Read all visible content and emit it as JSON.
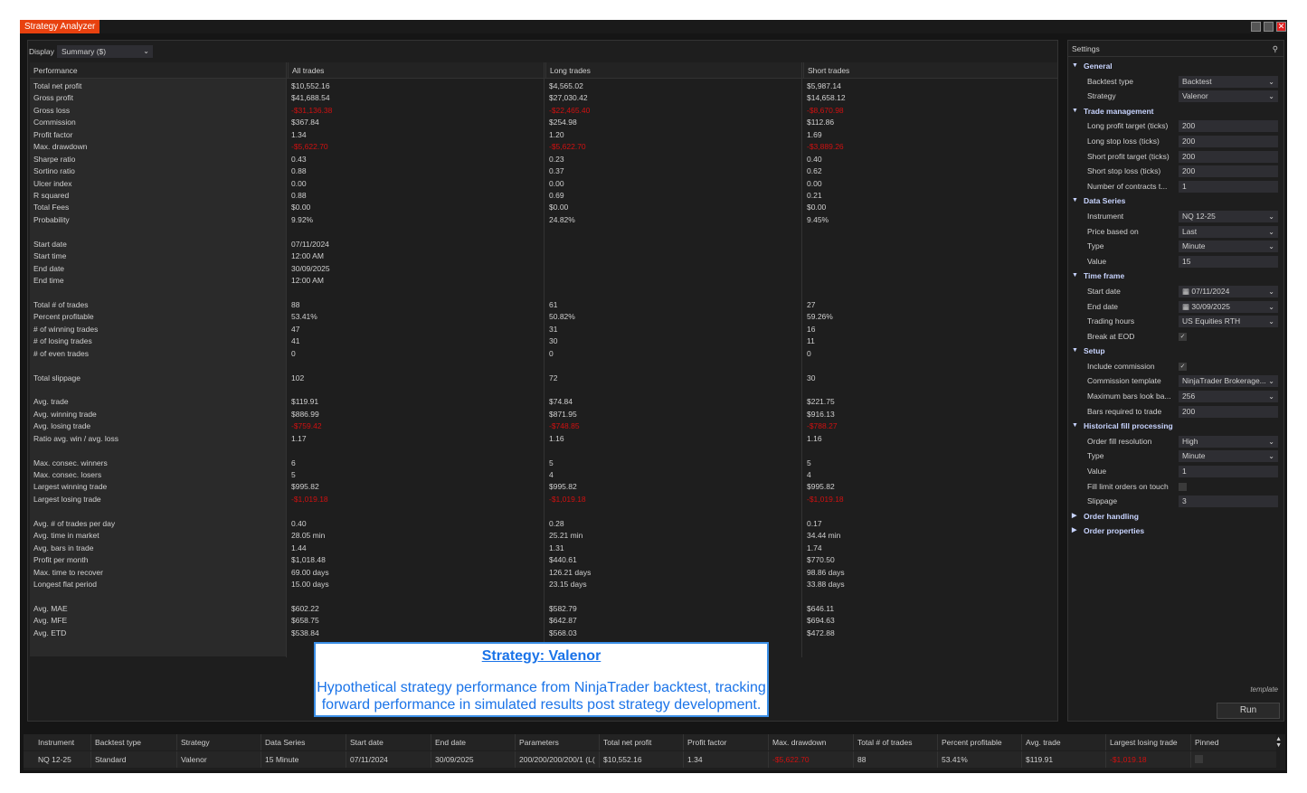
{
  "window": {
    "title": "Strategy Analyzer"
  },
  "display": {
    "label": "Display",
    "value": "Summary ($)"
  },
  "performance": {
    "headers": [
      "Performance",
      "All trades",
      "Long trades",
      "Short trades"
    ],
    "rows": [
      [
        "Total net profit",
        "$10,552.16",
        "$4,565.02",
        "$5,987.14"
      ],
      [
        "Gross profit",
        "$41,688.54",
        "$27,030.42",
        "$14,658.12"
      ],
      [
        "Gross loss",
        "-$31,136.38",
        "-$22,465.40",
        "-$8,670.98"
      ],
      [
        "Commission",
        "$367.84",
        "$254.98",
        "$112.86"
      ],
      [
        "Profit factor",
        "1.34",
        "1.20",
        "1.69"
      ],
      [
        "Max. drawdown",
        "-$5,622.70",
        "-$5,622.70",
        "-$3,889.26"
      ],
      [
        "Sharpe ratio",
        "0.43",
        "0.23",
        "0.40"
      ],
      [
        "Sortino ratio",
        "0.88",
        "0.37",
        "0.62"
      ],
      [
        "Ulcer index",
        "0.00",
        "0.00",
        "0.00"
      ],
      [
        "R squared",
        "0.88",
        "0.69",
        "0.21"
      ],
      [
        "Total Fees",
        "$0.00",
        "$0.00",
        "$0.00"
      ],
      [
        "Probability",
        "9.92%",
        "24.82%",
        "9.45%"
      ],
      [
        "",
        "",
        "",
        ""
      ],
      [
        "Start date",
        "07/11/2024",
        "",
        ""
      ],
      [
        "Start time",
        "12:00 AM",
        "",
        ""
      ],
      [
        "End date",
        "30/09/2025",
        "",
        ""
      ],
      [
        "End time",
        "12:00 AM",
        "",
        ""
      ],
      [
        "",
        "",
        "",
        ""
      ],
      [
        "Total # of trades",
        "88",
        "61",
        "27"
      ],
      [
        "Percent profitable",
        "53.41%",
        "50.82%",
        "59.26%"
      ],
      [
        "# of winning trades",
        "47",
        "31",
        "16"
      ],
      [
        "# of losing trades",
        "41",
        "30",
        "11"
      ],
      [
        "# of even trades",
        "0",
        "0",
        "0"
      ],
      [
        "",
        "",
        "",
        ""
      ],
      [
        "Total slippage",
        "102",
        "72",
        "30"
      ],
      [
        "",
        "",
        "",
        ""
      ],
      [
        "Avg. trade",
        "$119.91",
        "$74.84",
        "$221.75"
      ],
      [
        "Avg. winning trade",
        "$886.99",
        "$871.95",
        "$916.13"
      ],
      [
        "Avg. losing trade",
        "-$759.42",
        "-$748.85",
        "-$788.27"
      ],
      [
        "Ratio avg. win / avg. loss",
        "1.17",
        "1.16",
        "1.16"
      ],
      [
        "",
        "",
        "",
        ""
      ],
      [
        "Max. consec. winners",
        "6",
        "5",
        "5"
      ],
      [
        "Max. consec. losers",
        "5",
        "4",
        "4"
      ],
      [
        "Largest winning trade",
        "$995.82",
        "$995.82",
        "$995.82"
      ],
      [
        "Largest losing trade",
        "-$1,019.18",
        "-$1,019.18",
        "-$1,019.18"
      ],
      [
        "",
        "",
        "",
        ""
      ],
      [
        "Avg. # of trades per day",
        "0.40",
        "0.28",
        "0.17"
      ],
      [
        "Avg. time in market",
        "28.05 min",
        "25.21 min",
        "34.44 min"
      ],
      [
        "Avg. bars in trade",
        "1.44",
        "1.31",
        "1.74"
      ],
      [
        "Profit per month",
        "$1,018.48",
        "$440.61",
        "$770.50"
      ],
      [
        "Max. time to recover",
        "69.00 days",
        "126.21 days",
        "98.86 days"
      ],
      [
        "Longest flat period",
        "15.00 days",
        "23.15 days",
        "33.88 days"
      ],
      [
        "",
        "",
        "",
        ""
      ],
      [
        "Avg. MAE",
        "$602.22",
        "$582.79",
        "$646.11"
      ],
      [
        "Avg. MFE",
        "$658.75",
        "$642.87",
        "$694.63"
      ],
      [
        "Avg. ETD",
        "$538.84",
        "$568.03",
        "$472.88"
      ]
    ]
  },
  "overlay": {
    "heading": "Strategy: Valenor",
    "text": "Hypothetical strategy performance from NinjaTrader backtest, tracking forward performance in simulated results post strategy development."
  },
  "settings": {
    "title": "Settings",
    "template_label": "template",
    "run_label": "Run",
    "items": [
      {
        "t": "cat",
        "label": "General",
        "open": true
      },
      {
        "t": "sel",
        "label": "Backtest type",
        "value": "Backtest"
      },
      {
        "t": "sel",
        "label": "Strategy",
        "value": "Valenor"
      },
      {
        "t": "cat",
        "label": "Trade management",
        "open": true
      },
      {
        "t": "txt",
        "label": "Long profit target (ticks)",
        "value": "200"
      },
      {
        "t": "txt",
        "label": "Long stop loss (ticks)",
        "value": "200"
      },
      {
        "t": "txt",
        "label": "Short profit target (ticks)",
        "value": "200"
      },
      {
        "t": "txt",
        "label": "Short stop loss (ticks)",
        "value": "200"
      },
      {
        "t": "txt",
        "label": "Number of contracts t...",
        "value": "1"
      },
      {
        "t": "cat",
        "label": "Data Series",
        "open": true
      },
      {
        "t": "sel",
        "label": "Instrument",
        "value": "NQ 12-25"
      },
      {
        "t": "sel",
        "label": "Price based on",
        "value": "Last"
      },
      {
        "t": "sel",
        "label": "Type",
        "value": "Minute"
      },
      {
        "t": "txt",
        "label": "Value",
        "value": "15"
      },
      {
        "t": "cat",
        "label": "Time frame",
        "open": true
      },
      {
        "t": "date",
        "label": "Start date",
        "value": "07/11/2024"
      },
      {
        "t": "date",
        "label": "End date",
        "value": "30/09/2025"
      },
      {
        "t": "sel",
        "label": "Trading hours",
        "value": "US Equities RTH"
      },
      {
        "t": "chk",
        "label": "Break at EOD",
        "checked": true
      },
      {
        "t": "cat",
        "label": "Setup",
        "open": true
      },
      {
        "t": "chk",
        "label": "Include commission",
        "checked": true
      },
      {
        "t": "sel",
        "label": "Commission template",
        "value": "NinjaTrader Brokerage..."
      },
      {
        "t": "sel",
        "label": "Maximum bars look ba...",
        "value": "256"
      },
      {
        "t": "txt",
        "label": "Bars required to trade",
        "value": "200"
      },
      {
        "t": "cat",
        "label": "Historical fill processing",
        "open": true
      },
      {
        "t": "sel",
        "label": "Order fill resolution",
        "value": "High"
      },
      {
        "t": "sel",
        "label": "Type",
        "value": "Minute"
      },
      {
        "t": "txt",
        "label": "Value",
        "value": "1"
      },
      {
        "t": "chk",
        "label": "Fill limit orders on touch",
        "checked": false
      },
      {
        "t": "txt",
        "label": "Slippage",
        "value": "3"
      },
      {
        "t": "cat",
        "label": "Order handling",
        "open": false
      },
      {
        "t": "cat",
        "label": "Order properties",
        "open": false
      }
    ]
  },
  "results": {
    "headers": [
      "Instrument",
      "Backtest type",
      "Strategy",
      "Data Series",
      "Start date",
      "End date",
      "Parameters",
      "Total net profit",
      "Profit factor",
      "Max. drawdown",
      "Total # of trades",
      "Percent profitable",
      "Avg. trade",
      "Largest losing trade",
      "Pinned"
    ],
    "row": [
      "NQ 12-25",
      "Standard",
      "Valenor",
      "15 Minute",
      "07/11/2024",
      "30/09/2025",
      "200/200/200/200/1 (L(",
      "$10,552.16",
      "1.34",
      "-$5,622.70",
      "88",
      "53.41%",
      "$119.91",
      "-$1,019.18",
      ""
    ]
  },
  "colors": {
    "accent": "#e8410f",
    "negative": "#d01010",
    "overlay_text": "#1a73e8"
  }
}
